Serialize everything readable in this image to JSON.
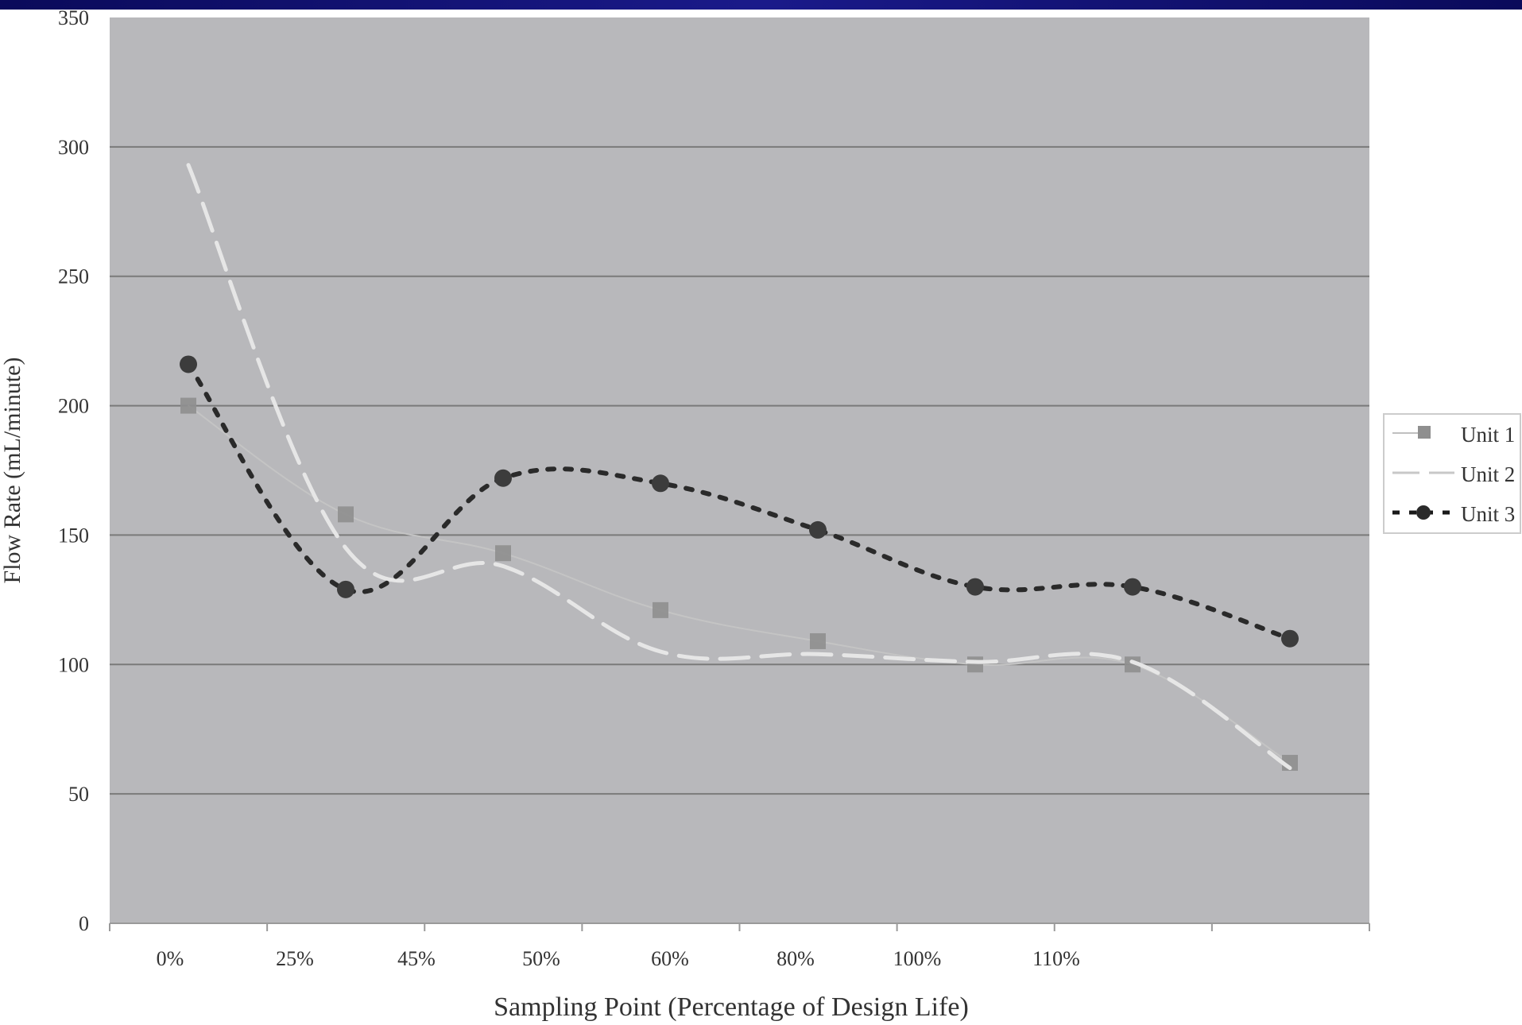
{
  "chart_data": {
    "type": "line",
    "title": "",
    "xlabel": "Sampling Point (Percentage of Design Life)",
    "ylabel": "Flow Rate (mL/minute)",
    "ylim": [
      0,
      350
    ],
    "y_ticks": [
      "0",
      "50",
      "100",
      "150",
      "200",
      "250",
      "300",
      "350"
    ],
    "x_tick_labels": [
      "0%",
      "25%",
      "45%",
      "50%",
      "60%",
      "80%",
      "100%",
      "110%"
    ],
    "grid": true,
    "legend_position": "right",
    "series": [
      {
        "name": "Unit 1",
        "color": "#8f8f8f",
        "marker": "square",
        "line": "solid-thin",
        "values": [
          200,
          158,
          143,
          121,
          109,
          100,
          100,
          62
        ]
      },
      {
        "name": "Unit 2",
        "color": "#e6e6e6",
        "marker": "none",
        "line": "long-dash",
        "values": [
          293,
          145,
          138,
          105,
          104,
          101,
          101,
          60
        ]
      },
      {
        "name": "Unit 3",
        "color": "#3c3c3c",
        "marker": "circle",
        "line": "dotted",
        "values": [
          216,
          129,
          172,
          170,
          152,
          130,
          130,
          110
        ]
      }
    ]
  },
  "colors": {
    "plot_background": "#b8b8bb",
    "gridline": "#7a7a7a",
    "header_band": "#12127a"
  }
}
